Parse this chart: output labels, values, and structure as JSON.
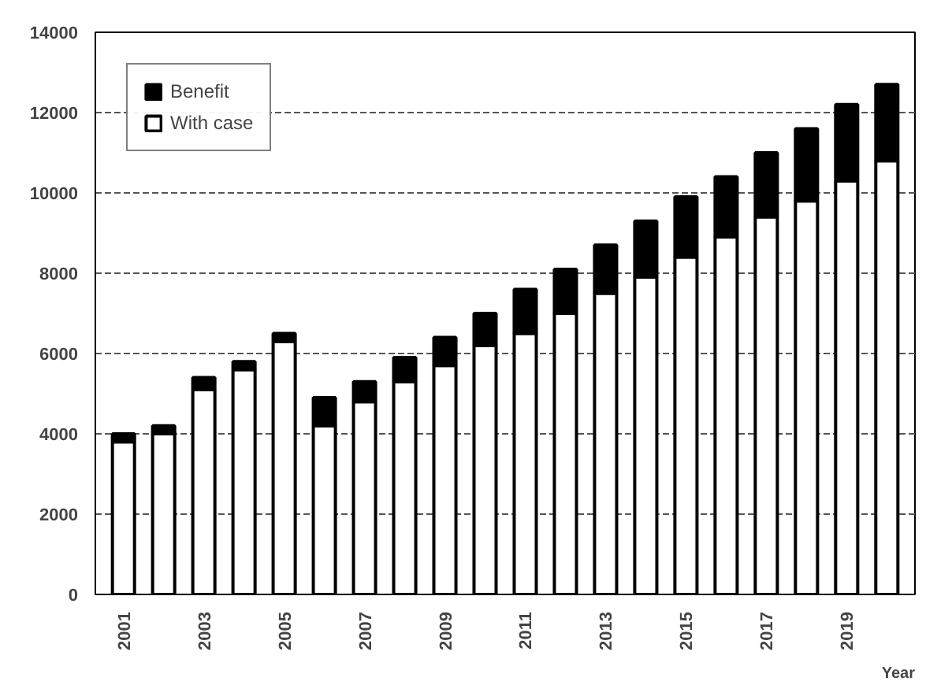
{
  "chart_data": {
    "type": "bar",
    "stacked": true,
    "xlabel": "Year",
    "categories": [
      "2001",
      null,
      "2003",
      null,
      "2005",
      null,
      "2007",
      null,
      "2009",
      null,
      "2011",
      null,
      "2013",
      null,
      "2015",
      null,
      "2017",
      null,
      "2019",
      null
    ],
    "series": [
      {
        "name": "With case",
        "color": "#ffffff",
        "values": [
          3800,
          4000,
          5100,
          5600,
          6300,
          4200,
          4800,
          5300,
          5700,
          6200,
          6500,
          7000,
          7500,
          7900,
          8400,
          8900,
          9400,
          9800,
          10300,
          10800
        ]
      },
      {
        "name": "Benefit",
        "color": "#000000",
        "values": [
          200,
          200,
          300,
          200,
          200,
          700,
          500,
          600,
          700,
          800,
          1100,
          1100,
          1200,
          1400,
          1500,
          1500,
          1600,
          1800,
          1900,
          1900
        ]
      }
    ],
    "ylim": [
      0,
      14000
    ],
    "yticks": [
      0,
      2000,
      4000,
      6000,
      8000,
      10000,
      12000,
      14000
    ],
    "grid": "y",
    "legend": "top left"
  }
}
